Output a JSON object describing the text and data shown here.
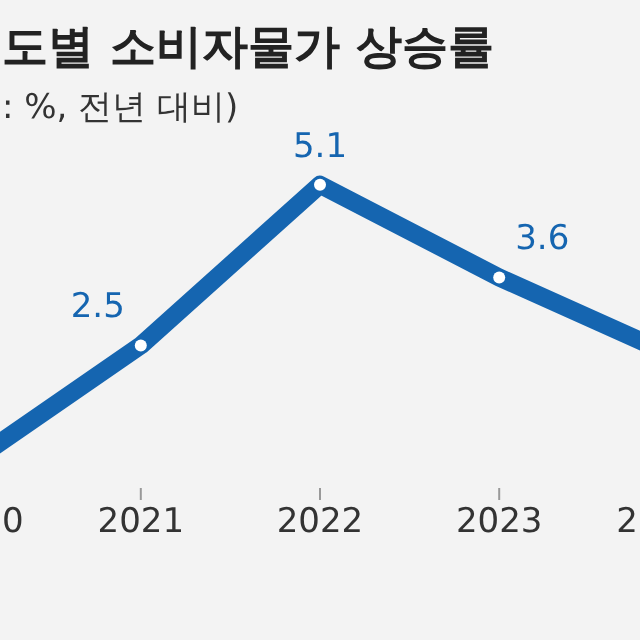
{
  "chart_data": {
    "type": "line",
    "title": "도별 소비자물가 상승률",
    "subtitle": ": %, 전년 대비)",
    "categories": [
      "0",
      "2021",
      "2022",
      "2023",
      "2"
    ],
    "series": [
      {
        "color": "#1565b0",
        "values": [
          0.5,
          2.5,
          5.1,
          3.6,
          2.3
        ],
        "value_labels": [
          null,
          "2.5",
          "5.1",
          "3.6",
          null
        ]
      }
    ],
    "marker": "circle",
    "line_style": "solid",
    "grid": false,
    "legend": false
  }
}
